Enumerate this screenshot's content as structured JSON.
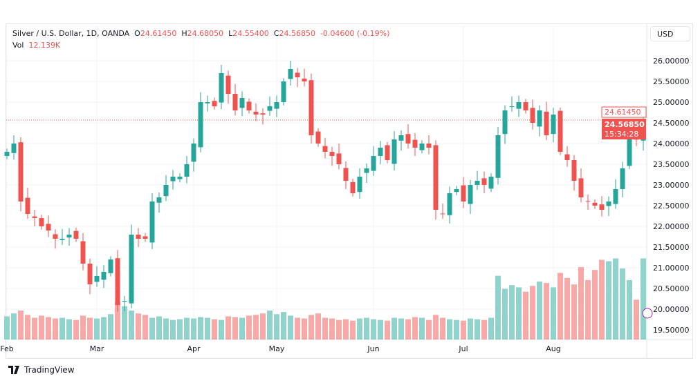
{
  "header": {
    "symbol": "Silver / U.S. Dollar, 1D, OANDA",
    "o_label": "O",
    "o": "24.61450",
    "h_label": "H",
    "h": "24.68050",
    "l_label": "L",
    "l": "24.55400",
    "c_label": "C",
    "c": "24.56850",
    "change": "-0.04600 (-0.19%)",
    "vol_label": "Vol",
    "vol": "12.139K"
  },
  "currency": "USD",
  "price_tags": {
    "open": "24.61450",
    "last": "24.56850",
    "countdown": "15:34:28"
  },
  "brand": "TradingView",
  "colors": {
    "up": "#26a69a",
    "down": "#ef5350",
    "up_vol": "#92d2cc",
    "down_vol": "#f7a9a7"
  },
  "chart_data": {
    "type": "candlestick",
    "title": "Silver / U.S. Dollar, 1D, OANDA",
    "ylim": [
      19.4,
      26.4
    ],
    "y_ticks": [
      "26.00000",
      "25.50000",
      "25.00000",
      "24.50000",
      "24.00000",
      "23.50000",
      "23.00000",
      "22.50000",
      "22.00000",
      "21.50000",
      "21.00000",
      "20.50000",
      "20.00000",
      "19.50000"
    ],
    "x_ticks": [
      {
        "label": "Feb",
        "index": 0
      },
      {
        "label": "Mar",
        "index": 13
      },
      {
        "label": "Apr",
        "index": 27
      },
      {
        "label": "May",
        "index": 39
      },
      {
        "label": "Jun",
        "index": 53
      },
      {
        "label": "Jul",
        "index": 66
      },
      {
        "label": "Aug",
        "index": 79
      }
    ],
    "closes": [
      23.8,
      24.0,
      22.6,
      22.3,
      22.2,
      22.0,
      21.9,
      21.7,
      21.7,
      21.8,
      21.7,
      21.1,
      20.6,
      20.8,
      20.9,
      21.2,
      20.1,
      20.2,
      21.8,
      21.7,
      21.7,
      22.6,
      22.7,
      23.0,
      23.2,
      23.2,
      23.5,
      24.0,
      25.0,
      25.0,
      24.9,
      25.7,
      25.2,
      24.8,
      25.1,
      24.8,
      24.7,
      24.7,
      24.9,
      25.0,
      25.5,
      25.8,
      25.6,
      25.5,
      24.2,
      24.0,
      23.8,
      23.7,
      23.5,
      23.1,
      22.8,
      23.2,
      23.4,
      23.7,
      23.9,
      23.6,
      24.1,
      24.2,
      24.0,
      23.9,
      24.0,
      23.9,
      22.4,
      22.3,
      22.8,
      22.9,
      22.6,
      23.0,
      23.1,
      23.0,
      23.2,
      24.2,
      24.8,
      24.9,
      25.0,
      24.8,
      24.5,
      24.8,
      24.2,
      24.7,
      23.8,
      23.6,
      23.1,
      22.7,
      22.6,
      22.5,
      22.4,
      22.6,
      22.9,
      23.4,
      24.2,
      24.1,
      24.57
    ],
    "volumes": [
      32,
      36,
      40,
      34,
      30,
      33,
      31,
      29,
      30,
      28,
      27,
      33,
      30,
      29,
      31,
      35,
      52,
      46,
      40,
      36,
      34,
      30,
      32,
      29,
      27,
      28,
      30,
      29,
      31,
      30,
      28,
      27,
      32,
      31,
      30,
      33,
      34,
      36,
      40,
      35,
      38,
      33,
      30,
      29,
      34,
      36,
      30,
      29,
      27,
      28,
      26,
      29,
      30,
      28,
      27,
      26,
      30,
      29,
      28,
      31,
      30,
      27,
      34,
      30,
      28,
      27,
      26,
      29,
      28,
      27,
      30,
      88,
      70,
      75,
      72,
      66,
      74,
      80,
      78,
      72,
      92,
      85,
      76,
      100,
      82,
      96,
      110,
      108,
      112,
      98,
      82,
      55,
      112
    ]
  }
}
